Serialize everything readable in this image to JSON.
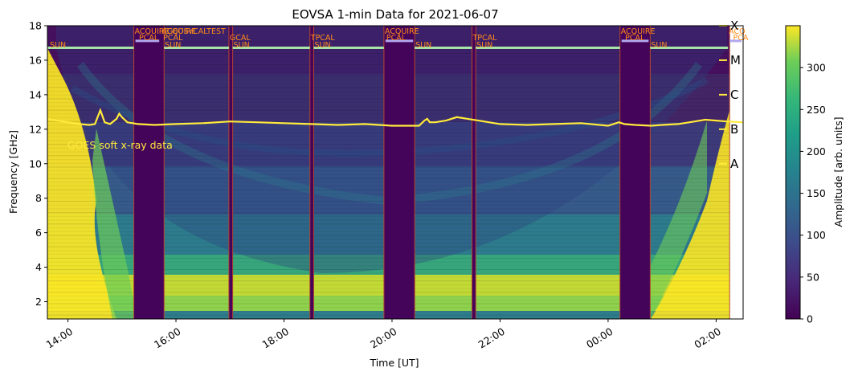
{
  "chart_data": {
    "type": "heatmap",
    "title": "EOVSA 1-min Data for 2021-06-07",
    "xlabel": "Time [UT]",
    "ylabel": "Frequency [GHz]",
    "colorbar_label": "Amplitude [arb. units]",
    "xlim_hours": [
      13.62,
      26.5
    ],
    "ylim": [
      1.0,
      18.0
    ],
    "clim": [
      0,
      350
    ],
    "colormap": "viridis",
    "x_ticks": [
      {
        "value": 14,
        "label": "14:00"
      },
      {
        "value": 16,
        "label": "16:00"
      },
      {
        "value": 18,
        "label": "18:00"
      },
      {
        "value": 20,
        "label": "20:00"
      },
      {
        "value": 22,
        "label": "22:00"
      },
      {
        "value": 24,
        "label": "00:00"
      },
      {
        "value": 26,
        "label": "02:00"
      }
    ],
    "y_ticks": [
      2,
      4,
      6,
      8,
      10,
      12,
      14,
      16,
      18
    ],
    "colorbar_ticks": [
      0,
      50,
      100,
      150,
      200,
      250,
      300
    ],
    "observing_gaps": [
      {
        "start": 15.22,
        "end": 15.78
      },
      {
        "start": 16.98,
        "end": 17.05
      },
      {
        "start": 18.48,
        "end": 18.55
      },
      {
        "start": 19.85,
        "end": 20.42
      },
      {
        "start": 21.48,
        "end": 21.55
      },
      {
        "start": 24.22,
        "end": 24.78
      }
    ],
    "scan_annotations": [
      {
        "time": 13.65,
        "label": "SUN",
        "row": "low"
      },
      {
        "time": 15.22,
        "label": "ACQUIRE",
        "row": "top"
      },
      {
        "time": 15.3,
        "label": "PCAL",
        "row": "mid"
      },
      {
        "time": 15.72,
        "label": "ACQUIRE",
        "row": "top"
      },
      {
        "time": 15.75,
        "label": "PCAL",
        "row": "mid"
      },
      {
        "time": 15.78,
        "label": "SUN",
        "row": "low"
      },
      {
        "time": 15.82,
        "label": "GEOSYCALTEST",
        "row": "top"
      },
      {
        "time": 16.98,
        "label": "GCAL",
        "row": "mid"
      },
      {
        "time": 17.05,
        "label": "SUN",
        "row": "low"
      },
      {
        "time": 18.48,
        "label": "TPCAL",
        "row": "mid"
      },
      {
        "time": 18.55,
        "label": "SUN",
        "row": "low"
      },
      {
        "time": 19.85,
        "label": "ACQUIRE",
        "row": "top"
      },
      {
        "time": 19.88,
        "label": "PCAL",
        "row": "mid"
      },
      {
        "time": 20.42,
        "label": "SUN",
        "row": "low"
      },
      {
        "time": 21.48,
        "label": "TPCAL",
        "row": "mid"
      },
      {
        "time": 21.55,
        "label": "SUN",
        "row": "low"
      },
      {
        "time": 24.22,
        "label": "ACQUIRE",
        "row": "top"
      },
      {
        "time": 24.3,
        "label": "PCAL",
        "row": "mid"
      },
      {
        "time": 24.78,
        "label": "SUN",
        "row": "low"
      },
      {
        "time": 26.22,
        "label": "ACQ",
        "row": "top"
      },
      {
        "time": 26.3,
        "label": "PCA",
        "row": "mid"
      }
    ],
    "goes": {
      "label": "GOES soft x-ray data",
      "color": "#ffeb3b",
      "class_ticks": [
        {
          "label": "A",
          "y": 10
        },
        {
          "label": "B",
          "y": 12
        },
        {
          "label": "C",
          "y": 14
        },
        {
          "label": "M",
          "y": 16
        },
        {
          "label": "X",
          "y": 18
        }
      ],
      "x": [
        13.62,
        13.8,
        14.0,
        14.2,
        14.4,
        14.5,
        14.55,
        14.6,
        14.68,
        14.78,
        14.9,
        14.95,
        15.0,
        15.1,
        15.3,
        15.6,
        16.0,
        16.5,
        17.0,
        17.5,
        18.0,
        18.5,
        19.0,
        19.5,
        20.0,
        20.5,
        20.6,
        20.65,
        20.7,
        20.8,
        21.0,
        21.2,
        21.4,
        21.6,
        22.0,
        22.5,
        23.0,
        23.5,
        24.0,
        24.2,
        24.3,
        24.5,
        24.8,
        25.0,
        25.3,
        25.6,
        25.8,
        26.0,
        26.2,
        26.5
      ],
      "y": [
        12.6,
        12.5,
        12.4,
        12.3,
        12.25,
        12.3,
        12.7,
        13.1,
        12.4,
        12.3,
        12.6,
        12.9,
        12.7,
        12.4,
        12.3,
        12.25,
        12.3,
        12.35,
        12.45,
        12.4,
        12.35,
        12.3,
        12.25,
        12.3,
        12.2,
        12.2,
        12.5,
        12.6,
        12.4,
        12.4,
        12.5,
        12.7,
        12.6,
        12.5,
        12.3,
        12.25,
        12.3,
        12.35,
        12.2,
        12.4,
        12.3,
        12.25,
        12.2,
        12.25,
        12.3,
        12.45,
        12.55,
        12.5,
        12.45,
        12.4
      ]
    }
  }
}
